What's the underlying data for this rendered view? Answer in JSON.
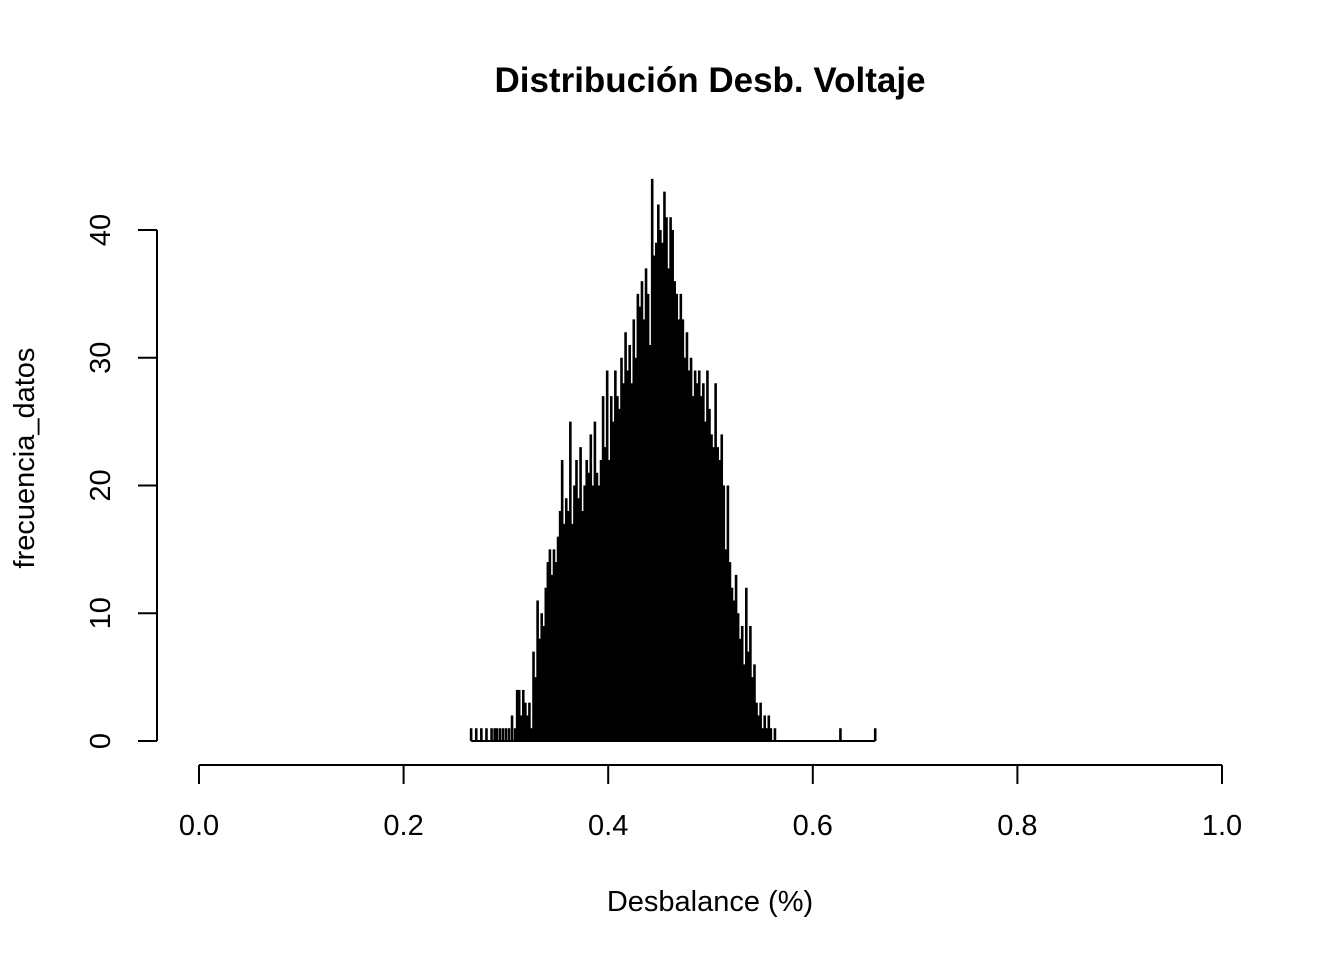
{
  "chart_data": {
    "type": "histogram",
    "title": "Distribución Desb. Voltaje",
    "xlabel": "Desbalance (%)",
    "ylabel": "frecuencia_datos",
    "xlim": [
      0,
      1
    ],
    "ylim": [
      0,
      40
    ],
    "x_ticks": [
      "0.0",
      "0.2",
      "0.4",
      "0.6",
      "0.8",
      "1.0"
    ],
    "y_ticks": [
      "0",
      "10",
      "20",
      "30",
      "40"
    ],
    "bar_color": "#000000",
    "bin_width": 0.001,
    "bins": [
      {
        "x": 0.266,
        "count": 1
      },
      {
        "x": 0.271,
        "count": 1
      },
      {
        "x": 0.276,
        "count": 1
      },
      {
        "x": 0.281,
        "count": 1
      },
      {
        "x": 0.286,
        "count": 1
      },
      {
        "x": 0.289,
        "count": 1
      },
      {
        "x": 0.291,
        "count": 1
      },
      {
        "x": 0.294,
        "count": 1
      },
      {
        "x": 0.297,
        "count": 1
      },
      {
        "x": 0.3,
        "count": 1
      },
      {
        "x": 0.303,
        "count": 1
      },
      {
        "x": 0.306,
        "count": 2
      },
      {
        "x": 0.309,
        "count": 1
      },
      {
        "x": 0.311,
        "count": 4
      },
      {
        "x": 0.313,
        "count": 4
      },
      {
        "x": 0.315,
        "count": 2
      },
      {
        "x": 0.317,
        "count": 4
      },
      {
        "x": 0.319,
        "count": 3
      },
      {
        "x": 0.321,
        "count": 2
      },
      {
        "x": 0.323,
        "count": 3
      },
      {
        "x": 0.325,
        "count": 1
      },
      {
        "x": 0.327,
        "count": 7
      },
      {
        "x": 0.329,
        "count": 5
      },
      {
        "x": 0.331,
        "count": 11
      },
      {
        "x": 0.333,
        "count": 8
      },
      {
        "x": 0.335,
        "count": 10
      },
      {
        "x": 0.337,
        "count": 9
      },
      {
        "x": 0.339,
        "count": 12
      },
      {
        "x": 0.341,
        "count": 14
      },
      {
        "x": 0.343,
        "count": 15
      },
      {
        "x": 0.345,
        "count": 13
      },
      {
        "x": 0.347,
        "count": 15
      },
      {
        "x": 0.349,
        "count": 14
      },
      {
        "x": 0.351,
        "count": 16
      },
      {
        "x": 0.353,
        "count": 18
      },
      {
        "x": 0.355,
        "count": 22
      },
      {
        "x": 0.357,
        "count": 17
      },
      {
        "x": 0.359,
        "count": 19
      },
      {
        "x": 0.361,
        "count": 18
      },
      {
        "x": 0.363,
        "count": 25
      },
      {
        "x": 0.365,
        "count": 17
      },
      {
        "x": 0.367,
        "count": 20
      },
      {
        "x": 0.369,
        "count": 22
      },
      {
        "x": 0.371,
        "count": 19
      },
      {
        "x": 0.373,
        "count": 23
      },
      {
        "x": 0.375,
        "count": 18
      },
      {
        "x": 0.377,
        "count": 20
      },
      {
        "x": 0.379,
        "count": 22
      },
      {
        "x": 0.381,
        "count": 21
      },
      {
        "x": 0.383,
        "count": 24
      },
      {
        "x": 0.385,
        "count": 20
      },
      {
        "x": 0.387,
        "count": 25
      },
      {
        "x": 0.389,
        "count": 21
      },
      {
        "x": 0.391,
        "count": 20
      },
      {
        "x": 0.393,
        "count": 22
      },
      {
        "x": 0.395,
        "count": 27
      },
      {
        "x": 0.397,
        "count": 23
      },
      {
        "x": 0.399,
        "count": 29
      },
      {
        "x": 0.401,
        "count": 22
      },
      {
        "x": 0.403,
        "count": 27
      },
      {
        "x": 0.405,
        "count": 25
      },
      {
        "x": 0.407,
        "count": 29
      },
      {
        "x": 0.409,
        "count": 27
      },
      {
        "x": 0.411,
        "count": 26
      },
      {
        "x": 0.413,
        "count": 30
      },
      {
        "x": 0.415,
        "count": 28
      },
      {
        "x": 0.417,
        "count": 32
      },
      {
        "x": 0.419,
        "count": 29
      },
      {
        "x": 0.421,
        "count": 31
      },
      {
        "x": 0.423,
        "count": 28
      },
      {
        "x": 0.425,
        "count": 33
      },
      {
        "x": 0.427,
        "count": 30
      },
      {
        "x": 0.429,
        "count": 35
      },
      {
        "x": 0.431,
        "count": 34
      },
      {
        "x": 0.433,
        "count": 36
      },
      {
        "x": 0.435,
        "count": 33
      },
      {
        "x": 0.437,
        "count": 37
      },
      {
        "x": 0.439,
        "count": 35
      },
      {
        "x": 0.441,
        "count": 31
      },
      {
        "x": 0.443,
        "count": 44
      },
      {
        "x": 0.445,
        "count": 38
      },
      {
        "x": 0.447,
        "count": 39
      },
      {
        "x": 0.449,
        "count": 42
      },
      {
        "x": 0.451,
        "count": 40
      },
      {
        "x": 0.453,
        "count": 39
      },
      {
        "x": 0.455,
        "count": 43
      },
      {
        "x": 0.457,
        "count": 41
      },
      {
        "x": 0.459,
        "count": 37
      },
      {
        "x": 0.461,
        "count": 41
      },
      {
        "x": 0.463,
        "count": 40
      },
      {
        "x": 0.465,
        "count": 36
      },
      {
        "x": 0.467,
        "count": 35
      },
      {
        "x": 0.469,
        "count": 33
      },
      {
        "x": 0.471,
        "count": 35
      },
      {
        "x": 0.473,
        "count": 33
      },
      {
        "x": 0.475,
        "count": 30
      },
      {
        "x": 0.477,
        "count": 32
      },
      {
        "x": 0.479,
        "count": 29
      },
      {
        "x": 0.481,
        "count": 30
      },
      {
        "x": 0.483,
        "count": 27
      },
      {
        "x": 0.485,
        "count": 29
      },
      {
        "x": 0.487,
        "count": 28
      },
      {
        "x": 0.489,
        "count": 29
      },
      {
        "x": 0.491,
        "count": 27
      },
      {
        "x": 0.493,
        "count": 28
      },
      {
        "x": 0.495,
        "count": 25
      },
      {
        "x": 0.497,
        "count": 29
      },
      {
        "x": 0.499,
        "count": 26
      },
      {
        "x": 0.501,
        "count": 24
      },
      {
        "x": 0.503,
        "count": 23
      },
      {
        "x": 0.505,
        "count": 28
      },
      {
        "x": 0.507,
        "count": 23
      },
      {
        "x": 0.509,
        "count": 22
      },
      {
        "x": 0.511,
        "count": 24
      },
      {
        "x": 0.513,
        "count": 20
      },
      {
        "x": 0.515,
        "count": 15
      },
      {
        "x": 0.517,
        "count": 20
      },
      {
        "x": 0.519,
        "count": 14
      },
      {
        "x": 0.521,
        "count": 12
      },
      {
        "x": 0.523,
        "count": 11
      },
      {
        "x": 0.525,
        "count": 13
      },
      {
        "x": 0.527,
        "count": 10
      },
      {
        "x": 0.529,
        "count": 8
      },
      {
        "x": 0.531,
        "count": 9
      },
      {
        "x": 0.533,
        "count": 6
      },
      {
        "x": 0.535,
        "count": 12
      },
      {
        "x": 0.537,
        "count": 7
      },
      {
        "x": 0.539,
        "count": 9
      },
      {
        "x": 0.541,
        "count": 5
      },
      {
        "x": 0.543,
        "count": 6
      },
      {
        "x": 0.545,
        "count": 3
      },
      {
        "x": 0.547,
        "count": 2
      },
      {
        "x": 0.549,
        "count": 3
      },
      {
        "x": 0.551,
        "count": 1
      },
      {
        "x": 0.553,
        "count": 2
      },
      {
        "x": 0.555,
        "count": 1
      },
      {
        "x": 0.557,
        "count": 2
      },
      {
        "x": 0.559,
        "count": 1
      },
      {
        "x": 0.561,
        "count": 0
      },
      {
        "x": 0.563,
        "count": 1
      },
      {
        "x": 0.627,
        "count": 1
      },
      {
        "x": 0.661,
        "count": 1
      }
    ]
  }
}
